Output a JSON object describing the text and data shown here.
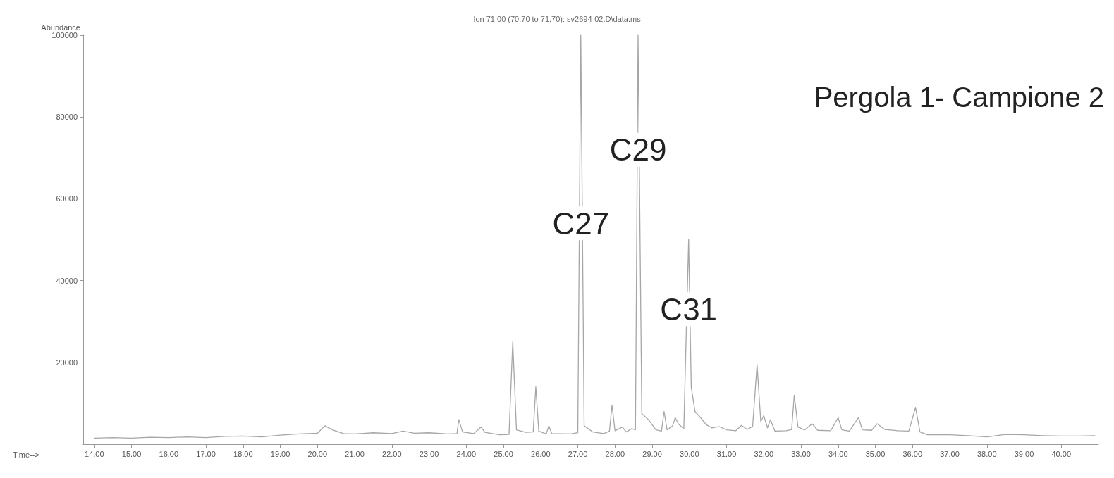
{
  "chart_data": {
    "type": "line",
    "title": "Ion 71.00 (70.70 to 71.70): sv2694-02.D\\data.ms",
    "xlabel": "Time-->",
    "ylabel": "Abundance",
    "annotations": [
      {
        "text": "C27",
        "x": 27.08,
        "y": 54000
      },
      {
        "text": "C29",
        "x": 28.62,
        "y": 72000
      },
      {
        "text": "C31",
        "x": 29.98,
        "y": 33000
      },
      "Pergola 1- Campione 2"
    ],
    "xlim": [
      13.7,
      41
    ],
    "xticks": [
      {
        "value": 14,
        "label": "14.00"
      },
      {
        "value": 15,
        "label": "15.00"
      },
      {
        "value": 16,
        "label": "16.00"
      },
      {
        "value": 17,
        "label": "17.00"
      },
      {
        "value": 18,
        "label": "18.00"
      },
      {
        "value": 19,
        "label": "19.00"
      },
      {
        "value": 20,
        "label": "20.00"
      },
      {
        "value": 21,
        "label": "21.00"
      },
      {
        "value": 22,
        "label": "22.00"
      },
      {
        "value": 23,
        "label": "23.00"
      },
      {
        "value": 24,
        "label": "24.00"
      },
      {
        "value": 25,
        "label": "25.00"
      },
      {
        "value": 26,
        "label": "26.00"
      },
      {
        "value": 27,
        "label": "27.00"
      },
      {
        "value": 28,
        "label": "28.00"
      },
      {
        "value": 29,
        "label": "29.00"
      },
      {
        "value": 30,
        "label": "30.00"
      },
      {
        "value": 31,
        "label": "31.00"
      },
      {
        "value": 32,
        "label": "32.00"
      },
      {
        "value": 33,
        "label": "33.00"
      },
      {
        "value": 34,
        "label": "34.00"
      },
      {
        "value": 35,
        "label": "35.00"
      },
      {
        "value": 36,
        "label": "36.00"
      },
      {
        "value": 37,
        "label": "37.00"
      },
      {
        "value": 38,
        "label": "38.00"
      },
      {
        "value": 39,
        "label": "39.00"
      },
      {
        "value": 40,
        "label": "40.00"
      }
    ],
    "ylim": [
      0,
      100000
    ],
    "yticks": [
      20000,
      40000,
      60000,
      80000,
      100000
    ],
    "grid": false,
    "marker": "none",
    "line_style": "solid",
    "series": [
      {
        "color": "#a6a6a6",
        "x": [
          14.0,
          14.5,
          15.0,
          15.5,
          16.0,
          16.5,
          17.0,
          17.5,
          18.0,
          18.5,
          19.0,
          19.5,
          20.0,
          20.2,
          20.4,
          20.7,
          21.0,
          21.5,
          22.0,
          22.3,
          22.6,
          23.0,
          23.5,
          23.75,
          23.8,
          23.9,
          24.2,
          24.4,
          24.5,
          24.9,
          25.15,
          25.25,
          25.35,
          25.6,
          25.8,
          25.87,
          25.95,
          26.15,
          26.22,
          26.3,
          26.8,
          27.0,
          27.08,
          27.17,
          27.4,
          27.7,
          27.85,
          27.92,
          28.0,
          28.2,
          28.3,
          28.45,
          28.55,
          28.62,
          28.72,
          28.9,
          29.1,
          29.25,
          29.32,
          29.4,
          29.55,
          29.62,
          29.7,
          29.85,
          29.98,
          30.05,
          30.15,
          30.3,
          30.45,
          30.6,
          30.8,
          31.0,
          31.25,
          31.4,
          31.55,
          31.7,
          31.82,
          31.92,
          32.0,
          32.1,
          32.18,
          32.3,
          32.6,
          32.75,
          32.82,
          32.92,
          33.1,
          33.3,
          33.45,
          33.8,
          34.0,
          34.1,
          34.3,
          34.55,
          34.65,
          34.9,
          35.05,
          35.25,
          35.6,
          35.9,
          36.08,
          36.2,
          36.4,
          37.0,
          37.5,
          38.0,
          38.5,
          39.0,
          39.5,
          40.0,
          40.5,
          40.9
        ],
        "values": [
          1500,
          1600,
          1500,
          1700,
          1600,
          1800,
          1600,
          1900,
          2000,
          1800,
          2200,
          2500,
          2700,
          4500,
          3500,
          2600,
          2500,
          2800,
          2600,
          3200,
          2700,
          2800,
          2500,
          2600,
          6000,
          3000,
          2600,
          4200,
          2900,
          2300,
          2400,
          25000,
          3500,
          2900,
          3000,
          14000,
          3200,
          2500,
          4500,
          2600,
          2500,
          2800,
          100000,
          4500,
          3000,
          2600,
          3200,
          9500,
          3300,
          4200,
          3000,
          3800,
          3500,
          100000,
          7500,
          6000,
          3500,
          3200,
          8000,
          3500,
          4500,
          6500,
          5000,
          3800,
          50000,
          14000,
          8000,
          6500,
          4800,
          4000,
          4300,
          3500,
          3300,
          4600,
          3600,
          4300,
          19500,
          5500,
          7000,
          4000,
          6000,
          3200,
          3300,
          3600,
          12000,
          4200,
          3500,
          5000,
          3400,
          3300,
          6500,
          3500,
          3200,
          6500,
          3500,
          3400,
          5000,
          3600,
          3300,
          3200,
          9000,
          3000,
          2300,
          2300,
          2100,
          1800,
          2400,
          2300,
          2100,
          2000,
          2000,
          2100
        ]
      }
    ]
  }
}
